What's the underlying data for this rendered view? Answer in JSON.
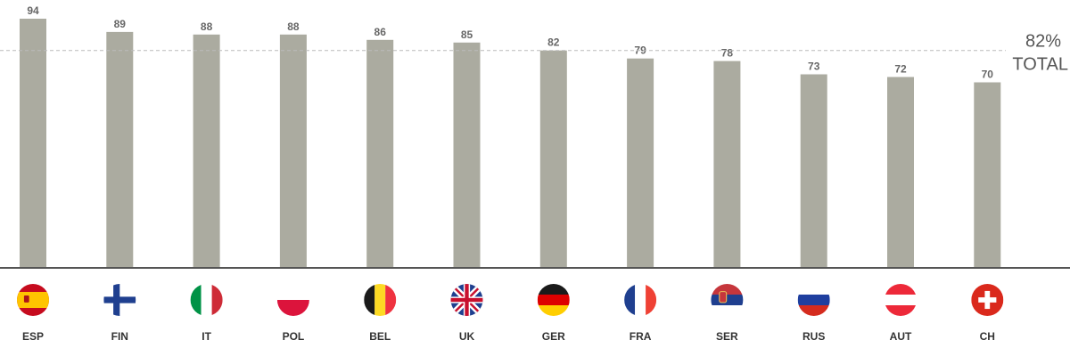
{
  "chart_data": {
    "type": "bar",
    "categories": [
      "ESP",
      "FIN",
      "IT",
      "POL",
      "BEL",
      "UK",
      "GER",
      "FRA",
      "SER",
      "RUS",
      "AUT",
      "CH"
    ],
    "values": [
      94,
      89,
      88,
      88,
      86,
      85,
      82,
      79,
      78,
      73,
      72,
      70
    ],
    "value_labels": [
      "94",
      "89",
      "88",
      "88",
      "86",
      "85",
      "82",
      "79",
      "78",
      "73",
      "72",
      "70"
    ],
    "flags": [
      "spain-flag-icon",
      "finland-flag-icon",
      "italy-flag-icon",
      "poland-flag-icon",
      "belgium-flag-icon",
      "uk-flag-icon",
      "germany-flag-icon",
      "france-flag-icon",
      "serbia-flag-icon",
      "russia-flag-icon",
      "austria-flag-icon",
      "switzerland-flag-icon"
    ],
    "reference_line": {
      "value": 82,
      "label_value": "82%",
      "label_text": "TOTAL"
    },
    "ylim": [
      0,
      100
    ],
    "title": "",
    "xlabel": "",
    "ylabel": "",
    "grid": false,
    "legend": "none"
  },
  "colors": {
    "bar": "#ababa0",
    "value_label": "#666666",
    "category_label": "#333333",
    "reference_line": "#bbbbbb",
    "baseline": "#555555"
  }
}
